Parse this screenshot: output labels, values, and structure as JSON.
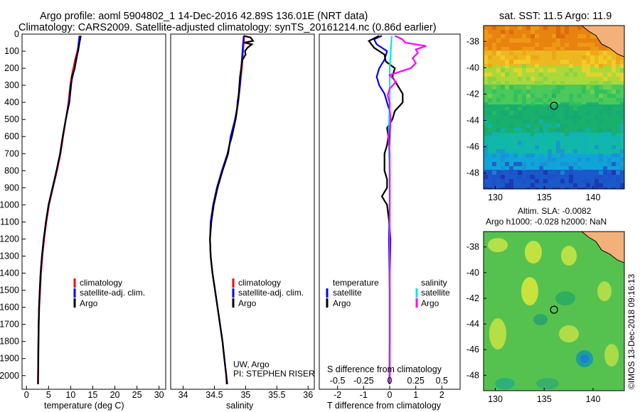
{
  "header": {
    "title_line1": "Argo profile: aoml 5904802_1 14-Dec-2016 42.89S 136.01E (NRT data)",
    "title_line2": "Climatology: CARS2009. Satellite-adjusted climatology: synTS_20161214.nc (0.86d earlier)"
  },
  "side_label": "©IMOS 13-Dec-2018 09:16:13",
  "colors": {
    "climatology": "#ff0000",
    "satellite": "#0000ff",
    "argo": "#000000",
    "sat_salinity": "#00e5ee",
    "argo_salinity": "#ff00ff",
    "land": "#f4b07a"
  },
  "chart_data": [
    {
      "type": "line",
      "id": "temperature",
      "xlabel": "temperature (deg C)",
      "xlim": [
        -1,
        31.5
      ],
      "xticks": [
        0,
        5,
        10,
        15,
        20,
        25,
        30
      ],
      "ylim": [
        2080,
        0
      ],
      "yticks": [
        0,
        100,
        200,
        300,
        400,
        500,
        600,
        700,
        800,
        900,
        1000,
        1100,
        1200,
        1300,
        1400,
        1500,
        1600,
        1700,
        1800,
        1900,
        2000
      ],
      "legend": [
        "climatology",
        "satellite-adj. clim.",
        "Argo"
      ],
      "series": [
        {
          "name": "climatology",
          "depth": [
            10,
            50,
            100,
            150,
            200,
            250,
            300,
            400,
            500,
            600,
            700,
            800,
            900,
            1000,
            1100,
            1200,
            1300,
            1400,
            1500,
            1600,
            1700,
            1800,
            1900,
            2000,
            2050
          ],
          "values": [
            12.2,
            11.9,
            11.5,
            11.0,
            10.6,
            10.2,
            9.9,
            9.5,
            8.9,
            8.3,
            7.7,
            6.9,
            6.0,
            5.1,
            4.5,
            4.0,
            3.6,
            3.3,
            3.1,
            2.9,
            2.8,
            2.75,
            2.7,
            2.65,
            2.65
          ]
        },
        {
          "name": "satellite-adj. clim.",
          "depth": [
            10,
            50,
            100,
            150,
            200,
            250,
            300,
            400,
            500,
            600,
            700,
            800,
            900,
            1000,
            1100,
            1200,
            1300,
            1400,
            1500,
            1600,
            1700,
            1800,
            1900,
            2000,
            2050
          ],
          "values": [
            12.0,
            11.8,
            11.6,
            11.3,
            10.9,
            10.4,
            10.0,
            9.6,
            8.9,
            8.2,
            7.6,
            6.8,
            5.9,
            5.0,
            4.4,
            3.9,
            3.5,
            3.2,
            3.0,
            2.85,
            2.75,
            2.7,
            2.65,
            2.62,
            2.6
          ]
        },
        {
          "name": "Argo",
          "depth": [
            10,
            50,
            100,
            150,
            200,
            250,
            300,
            400,
            500,
            600,
            700,
            800,
            900,
            1000,
            1100,
            1200,
            1300,
            1400,
            1500,
            1600,
            1700,
            1800,
            1900,
            2000,
            2050
          ],
          "values": [
            12.3,
            12.0,
            11.7,
            11.2,
            10.9,
            10.3,
            10.1,
            9.7,
            8.9,
            8.2,
            7.6,
            6.8,
            5.9,
            5.0,
            4.4,
            3.9,
            3.5,
            3.2,
            3.0,
            2.85,
            2.75,
            2.7,
            2.65,
            2.62,
            2.6
          ]
        }
      ]
    },
    {
      "type": "line",
      "id": "salinity",
      "xlabel": "salinity",
      "xlim": [
        33.8,
        36.1
      ],
      "xticks": [
        34,
        34.5,
        35,
        35.5,
        36
      ],
      "ylim": [
        2080,
        0
      ],
      "legend": [
        "climatology",
        "satellite-adj. clim.",
        "Argo"
      ],
      "annotation": [
        "UW, Argo",
        "PI: STEPHEN RISER"
      ],
      "series": [
        {
          "name": "climatology",
          "depth": [
            10,
            50,
            100,
            150,
            200,
            300,
            400,
            500,
            600,
            650,
            700,
            800,
            900,
            1000,
            1100,
            1200,
            1300,
            1400,
            1500,
            1600,
            1700,
            1800,
            1900,
            2000,
            2050
          ],
          "values": [
            34.98,
            34.97,
            34.96,
            34.95,
            34.94,
            34.91,
            34.88,
            34.84,
            34.77,
            34.74,
            34.72,
            34.63,
            34.55,
            34.49,
            34.45,
            34.43,
            34.44,
            34.47,
            34.51,
            34.55,
            34.59,
            34.63,
            34.66,
            34.69,
            34.71
          ]
        },
        {
          "name": "satellite-adj. clim.",
          "depth": [
            10,
            50,
            100,
            150,
            200,
            300,
            400,
            500,
            600,
            650,
            700,
            800,
            900,
            1000,
            1100,
            1200,
            1300,
            1400,
            1500,
            1600,
            1700,
            1800,
            1900,
            2000,
            2050
          ],
          "values": [
            34.97,
            34.96,
            34.95,
            34.94,
            34.93,
            34.91,
            34.88,
            34.83,
            34.76,
            34.74,
            34.71,
            34.62,
            34.54,
            34.48,
            34.44,
            34.43,
            34.44,
            34.47,
            34.51,
            34.55,
            34.59,
            34.63,
            34.66,
            34.69,
            34.7
          ]
        },
        {
          "name": "Argo",
          "depth": [
            10,
            20,
            40,
            50,
            60,
            80,
            100,
            120,
            150,
            200,
            250,
            300,
            350,
            400,
            450,
            500,
            600,
            650,
            700,
            800,
            900,
            1000,
            1100,
            1200,
            1300,
            1400,
            1500,
            1600,
            1700,
            1800,
            1900,
            2000,
            2050
          ],
          "values": [
            34.97,
            35.08,
            35.12,
            34.98,
            35.1,
            35.03,
            34.99,
            35.0,
            34.95,
            34.93,
            34.91,
            34.9,
            34.89,
            34.87,
            34.86,
            34.84,
            34.78,
            34.74,
            34.72,
            34.63,
            34.55,
            34.49,
            34.45,
            34.43,
            34.44,
            34.47,
            34.51,
            34.55,
            34.59,
            34.63,
            34.66,
            34.69,
            34.7
          ]
        }
      ]
    },
    {
      "type": "line",
      "id": "difference",
      "xlabel": "T difference from climatology",
      "xlabel_top": "S difference from climatology",
      "xlim": [
        -2.7,
        2.7
      ],
      "xticks": [
        -2,
        -1,
        0,
        1,
        2
      ],
      "s_ticks": [
        -0.5,
        -0.25,
        0,
        0.25,
        0.5
      ],
      "ylim": [
        2080,
        0
      ],
      "legend_temperature": [
        "temperature",
        "satellite",
        "Argo"
      ],
      "legend_salinity": [
        "salinity",
        "satellite",
        "Argo"
      ],
      "series": [
        {
          "name": "temperature satellite",
          "depth": [
            10,
            30,
            60,
            100,
            150,
            200,
            250,
            300,
            350,
            400,
            450,
            500,
            600,
            700,
            800,
            1000,
            1200,
            1500,
            1800,
            2050
          ],
          "values": [
            -0.3,
            -0.6,
            -0.5,
            -0.1,
            -0.2,
            -0.4,
            -0.5,
            -0.4,
            -0.2,
            -0.1,
            0,
            0.03,
            0,
            -0.02,
            0,
            0,
            -0.03,
            0,
            0,
            -0.01
          ]
        },
        {
          "name": "temperature Argo",
          "depth": [
            10,
            40,
            80,
            120,
            160,
            200,
            250,
            300,
            350,
            400,
            450,
            500,
            550,
            600,
            650,
            700,
            750,
            800,
            850,
            900,
            950,
            1000,
            1100,
            1200,
            1300,
            1400,
            1500,
            1600,
            1700,
            1800,
            1900,
            2000,
            2050
          ],
          "values": [
            -0.4,
            -0.8,
            -0.6,
            -0.2,
            -0.15,
            0.2,
            0.1,
            0.3,
            0.5,
            0.5,
            0.2,
            0.1,
            -0.1,
            -0.05,
            -0.1,
            -0.2,
            -0.2,
            -0.2,
            -0.1,
            -0.1,
            -0.3,
            -0.1,
            -0.02,
            0.03,
            0.02,
            0,
            0,
            0,
            0,
            0,
            0,
            0,
            0
          ]
        },
        {
          "name": "salinity satellite",
          "depth": [
            10,
            100,
            200,
            400,
            600,
            800,
            1000,
            1200,
            1500,
            1800,
            2050
          ],
          "values": [
            0.02,
            0.01,
            0.0,
            0.0,
            -0.01,
            0.0,
            0.0,
            0.0,
            0.0,
            0.0,
            0.0
          ]
        },
        {
          "name": "salinity Argo",
          "depth": [
            10,
            30,
            50,
            70,
            90,
            110,
            140,
            170,
            200,
            240,
            280,
            320,
            360,
            400,
            450,
            500,
            550,
            600,
            700,
            800,
            900,
            1000,
            1500,
            2050
          ],
          "values": [
            0.05,
            0.12,
            0.15,
            0.35,
            0.25,
            0.27,
            0.22,
            0.25,
            0.2,
            0.0,
            0.06,
            0.0,
            -0.02,
            0.0,
            0.0,
            0.01,
            0.0,
            -0.01,
            0.0,
            0.0,
            0.0,
            0.0,
            0.0,
            0.0
          ]
        }
      ]
    },
    {
      "type": "heatmap",
      "id": "sst_map",
      "title": "sat. SST: 11.5 Argo: 11.9",
      "xticks": [
        130,
        135,
        140
      ],
      "yticks": [
        -38,
        -40,
        -42,
        -44,
        -46,
        -48
      ],
      "xlim": [
        128.8,
        143.2
      ],
      "ylim": [
        -49.2,
        -36.8
      ],
      "marker": [
        136.01,
        -42.89
      ]
    },
    {
      "type": "heatmap",
      "id": "sla_map",
      "title_line1": "Altim. SLA: -0.0082",
      "title_line2": "Argo h1000: -0.028 h2000: NaN",
      "xticks": [
        130,
        135,
        140
      ],
      "yticks": [
        -38,
        -40,
        -42,
        -44,
        -46,
        -48
      ],
      "xlim": [
        128.8,
        143.2
      ],
      "ylim": [
        -49.2,
        -36.8
      ],
      "marker": [
        136.01,
        -42.89
      ]
    }
  ]
}
